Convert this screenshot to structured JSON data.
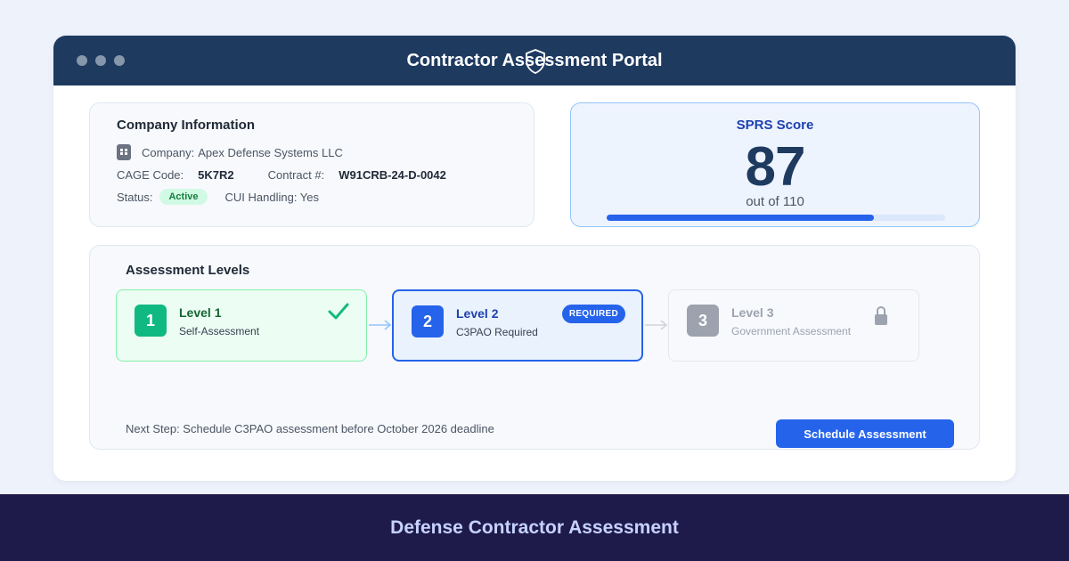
{
  "window": {
    "title": "Contractor Assessment Portal",
    "title_icon": "shield-icon"
  },
  "company": {
    "heading": "Company Information",
    "company_label": "Company:",
    "company_name": "Apex Defense Systems LLC",
    "cage_label": "CAGE Code:",
    "cage_value": "5K7R2",
    "contract_label": "Contract #:",
    "contract_value": "W91CRB-24-D-0042",
    "status_label": "Status:",
    "status_value": "Active",
    "cui_text": "CUI Handling: Yes",
    "icon": "building-icon"
  },
  "sprs": {
    "label": "SPRS Score",
    "score": "87",
    "out_of": "out of 110",
    "progress_fraction": 0.79
  },
  "levels": {
    "heading": "Assessment Levels",
    "items": [
      {
        "number": "1",
        "name": "Level 1",
        "desc": "Self-Assessment",
        "state": "complete",
        "icon": "check-icon"
      },
      {
        "number": "2",
        "name": "Level 2",
        "desc": "C3PAO Required",
        "state": "required",
        "badge": "REQUIRED"
      },
      {
        "number": "3",
        "name": "Level 3",
        "desc": "Government Assessment",
        "state": "locked",
        "icon": "lock-icon"
      }
    ],
    "next_step": "Next Step: Schedule C3PAO assessment before October 2026 deadline",
    "button_label": "Schedule Assessment"
  },
  "footer": {
    "text": "Defense Contractor Assessment"
  },
  "colors": {
    "titlebar": "#1e3a5f",
    "accent": "#2563eb",
    "success": "#10b981",
    "footer": "#1e1b4b"
  }
}
